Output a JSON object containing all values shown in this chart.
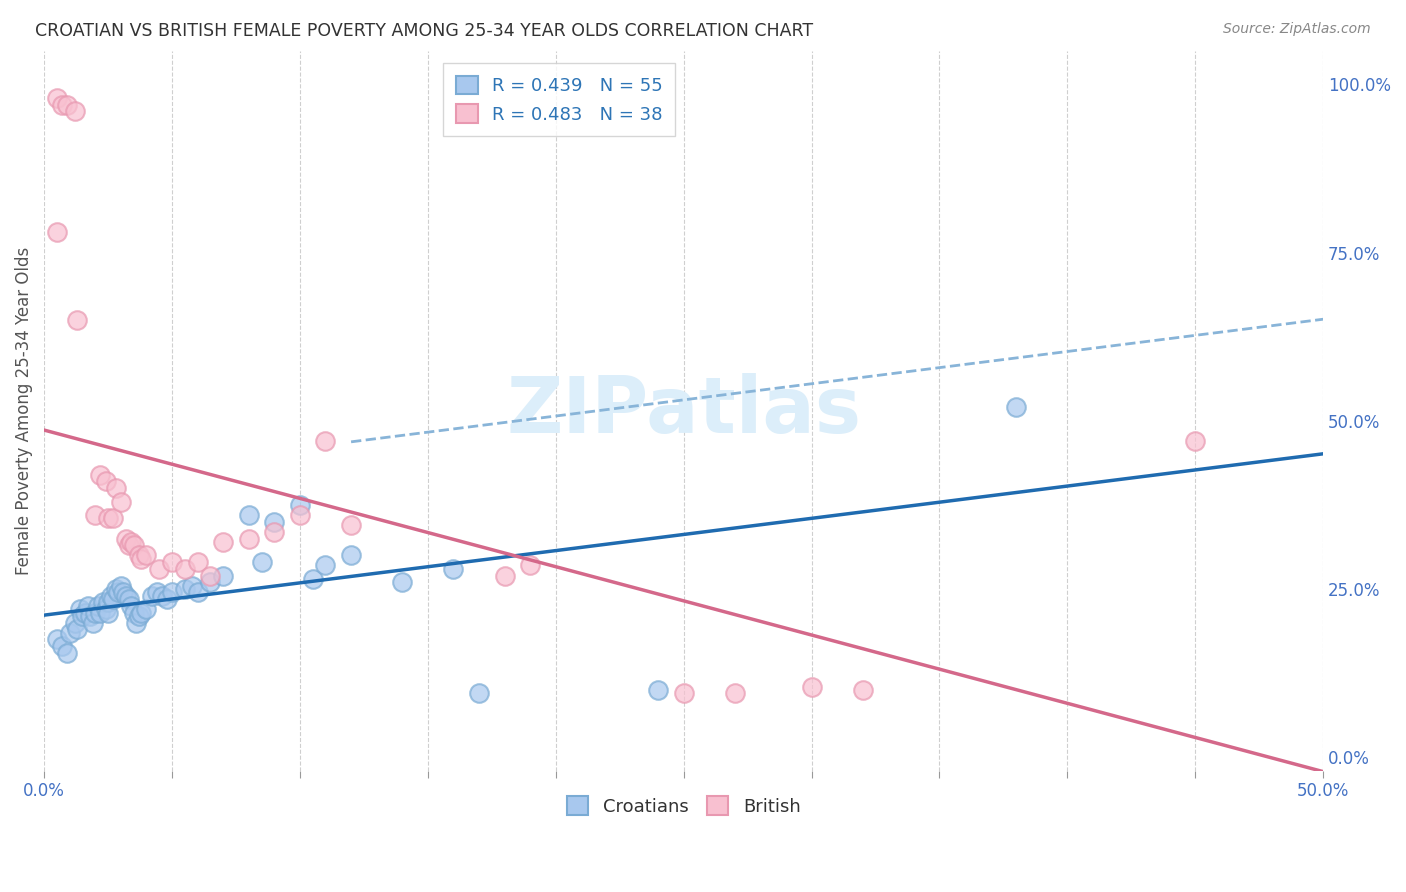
{
  "title": "CROATIAN VS BRITISH FEMALE POVERTY AMONG 25-34 YEAR OLDS CORRELATION CHART",
  "source": "Source: ZipAtlas.com",
  "ylabel": "Female Poverty Among 25-34 Year Olds",
  "xlim": [
    0.0,
    0.5
  ],
  "ylim": [
    -0.02,
    1.05
  ],
  "x_ticks": [
    0.0,
    0.05,
    0.1,
    0.15,
    0.2,
    0.25,
    0.3,
    0.35,
    0.4,
    0.45,
    0.5
  ],
  "x_tick_labels_show": [
    "0.0%",
    "",
    "",
    "",
    "",
    "",
    "",
    "",
    "",
    "",
    "50.0%"
  ],
  "y_ticks": [
    0.0,
    0.25,
    0.5,
    0.75,
    1.0
  ],
  "y_tick_labels_right": [
    "0.0%",
    "25.0%",
    "50.0%",
    "75.0%",
    "100.0%"
  ],
  "croatian_color_fill": "#A8C8EE",
  "croatian_color_edge": "#7AABD4",
  "british_color_fill": "#F8C0D0",
  "british_color_edge": "#E898B0",
  "croatian_R": 0.439,
  "croatian_N": 55,
  "british_R": 0.483,
  "british_N": 38,
  "legend_color": "#2E75B6",
  "background_color": "#FFFFFF",
  "grid_color": "#BBBBBB",
  "watermark": "ZIPatlas",
  "watermark_color": "#DCEEFA",
  "croatian_scatter": [
    [
      0.005,
      0.175
    ],
    [
      0.007,
      0.165
    ],
    [
      0.009,
      0.155
    ],
    [
      0.01,
      0.185
    ],
    [
      0.012,
      0.2
    ],
    [
      0.013,
      0.19
    ],
    [
      0.014,
      0.22
    ],
    [
      0.015,
      0.21
    ],
    [
      0.016,
      0.215
    ],
    [
      0.017,
      0.225
    ],
    [
      0.018,
      0.21
    ],
    [
      0.019,
      0.2
    ],
    [
      0.02,
      0.215
    ],
    [
      0.021,
      0.225
    ],
    [
      0.022,
      0.215
    ],
    [
      0.023,
      0.23
    ],
    [
      0.024,
      0.22
    ],
    [
      0.025,
      0.23
    ],
    [
      0.025,
      0.215
    ],
    [
      0.026,
      0.24
    ],
    [
      0.027,
      0.235
    ],
    [
      0.028,
      0.25
    ],
    [
      0.029,
      0.245
    ],
    [
      0.03,
      0.255
    ],
    [
      0.031,
      0.245
    ],
    [
      0.032,
      0.24
    ],
    [
      0.033,
      0.235
    ],
    [
      0.034,
      0.225
    ],
    [
      0.035,
      0.215
    ],
    [
      0.036,
      0.2
    ],
    [
      0.037,
      0.21
    ],
    [
      0.038,
      0.215
    ],
    [
      0.04,
      0.22
    ],
    [
      0.042,
      0.24
    ],
    [
      0.044,
      0.245
    ],
    [
      0.046,
      0.24
    ],
    [
      0.048,
      0.235
    ],
    [
      0.05,
      0.245
    ],
    [
      0.055,
      0.25
    ],
    [
      0.058,
      0.255
    ],
    [
      0.06,
      0.245
    ],
    [
      0.065,
      0.26
    ],
    [
      0.07,
      0.27
    ],
    [
      0.08,
      0.36
    ],
    [
      0.085,
      0.29
    ],
    [
      0.09,
      0.35
    ],
    [
      0.1,
      0.375
    ],
    [
      0.105,
      0.265
    ],
    [
      0.11,
      0.285
    ],
    [
      0.12,
      0.3
    ],
    [
      0.14,
      0.26
    ],
    [
      0.16,
      0.28
    ],
    [
      0.17,
      0.095
    ],
    [
      0.24,
      0.1
    ],
    [
      0.38,
      0.52
    ]
  ],
  "british_scatter": [
    [
      0.005,
      0.98
    ],
    [
      0.007,
      0.97
    ],
    [
      0.009,
      0.97
    ],
    [
      0.012,
      0.96
    ],
    [
      0.013,
      0.65
    ],
    [
      0.02,
      0.36
    ],
    [
      0.022,
      0.42
    ],
    [
      0.024,
      0.41
    ],
    [
      0.025,
      0.355
    ],
    [
      0.027,
      0.355
    ],
    [
      0.028,
      0.4
    ],
    [
      0.03,
      0.38
    ],
    [
      0.032,
      0.325
    ],
    [
      0.033,
      0.315
    ],
    [
      0.034,
      0.32
    ],
    [
      0.035,
      0.315
    ],
    [
      0.037,
      0.3
    ],
    [
      0.038,
      0.295
    ],
    [
      0.04,
      0.3
    ],
    [
      0.045,
      0.28
    ],
    [
      0.05,
      0.29
    ],
    [
      0.055,
      0.28
    ],
    [
      0.06,
      0.29
    ],
    [
      0.065,
      0.27
    ],
    [
      0.07,
      0.32
    ],
    [
      0.08,
      0.325
    ],
    [
      0.09,
      0.335
    ],
    [
      0.1,
      0.36
    ],
    [
      0.11,
      0.47
    ],
    [
      0.12,
      0.345
    ],
    [
      0.18,
      0.27
    ],
    [
      0.19,
      0.285
    ],
    [
      0.25,
      0.095
    ],
    [
      0.27,
      0.095
    ],
    [
      0.3,
      0.105
    ],
    [
      0.32,
      0.1
    ],
    [
      0.45,
      0.47
    ],
    [
      0.005,
      0.78
    ]
  ],
  "croatian_line_color": "#1F6BB0",
  "british_line_color": "#D4688A",
  "dashed_line_color": "#88B4D8",
  "scatter_size": 180,
  "scatter_alpha": 0.7,
  "scatter_linewidth": 1.5
}
